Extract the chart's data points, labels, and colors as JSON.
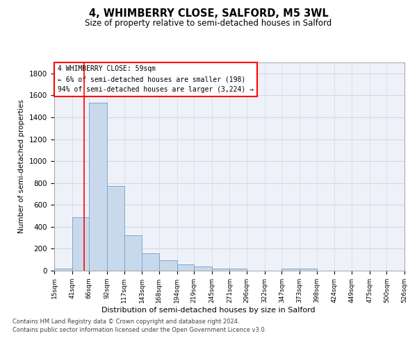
{
  "title": "4, WHIMBERRY CLOSE, SALFORD, M5 3WL",
  "subtitle": "Size of property relative to semi-detached houses in Salford",
  "xlabel": "Distribution of semi-detached houses by size in Salford",
  "ylabel": "Number of semi-detached properties",
  "footnote1": "Contains HM Land Registry data © Crown copyright and database right 2024.",
  "footnote2": "Contains public sector information licensed under the Open Government Licence v3.0.",
  "annotation_title": "4 WHIMBERRY CLOSE: 59sqm",
  "annotation_line2": "← 6% of semi-detached houses are smaller (198)",
  "annotation_line3": "94% of semi-detached houses are larger (3,224) →",
  "bar_edges": [
    15,
    41,
    66,
    92,
    117,
    143,
    168,
    194,
    219,
    245,
    271,
    296,
    322,
    347,
    373,
    398,
    424,
    449,
    475,
    500,
    526
  ],
  "bar_heights": [
    20,
    490,
    1530,
    775,
    320,
    160,
    95,
    60,
    35,
    20,
    20,
    0,
    0,
    20,
    20,
    0,
    0,
    0,
    0,
    0,
    0
  ],
  "bar_color": "#c9d9ec",
  "bar_edge_color": "#7aa8cc",
  "grid_color": "#d0d8e8",
  "background_color": "#eef2f8",
  "red_line_x": 59,
  "ylim": [
    0,
    1900
  ],
  "yticks": [
    0,
    200,
    400,
    600,
    800,
    1000,
    1200,
    1400,
    1600,
    1800
  ]
}
